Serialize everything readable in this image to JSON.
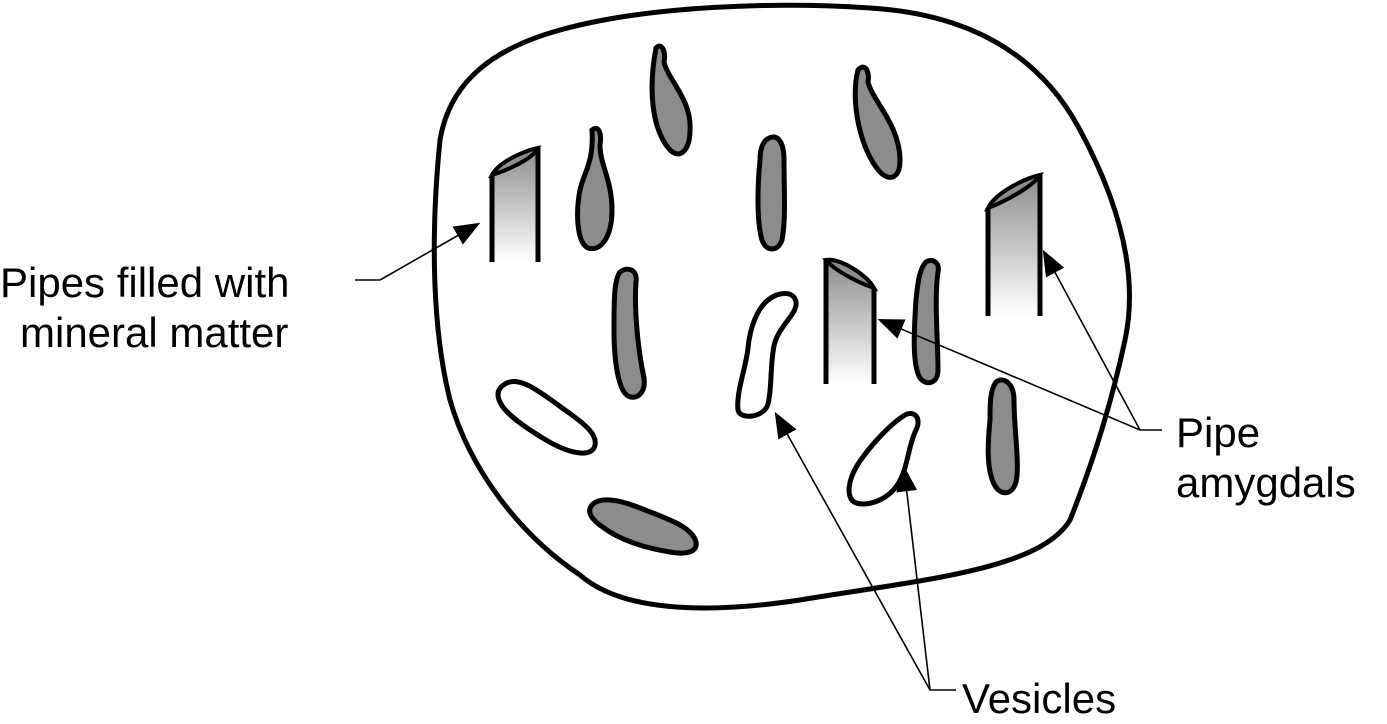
{
  "labels": {
    "pipes_filled": {
      "line1": "Pipes filled with",
      "line2": "mineral matter"
    },
    "pipe_amygdals": {
      "line1": "Pipe",
      "line2": "amygdals"
    },
    "vesicles": "Vesicles"
  },
  "colors": {
    "outline": "#000000",
    "amygdal_fill": "#8c8c8c",
    "vesicle_fill": "#ffffff",
    "pipe_gradient_top": "#8c8c8c",
    "pipe_gradient_bottom": "#ffffff"
  }
}
